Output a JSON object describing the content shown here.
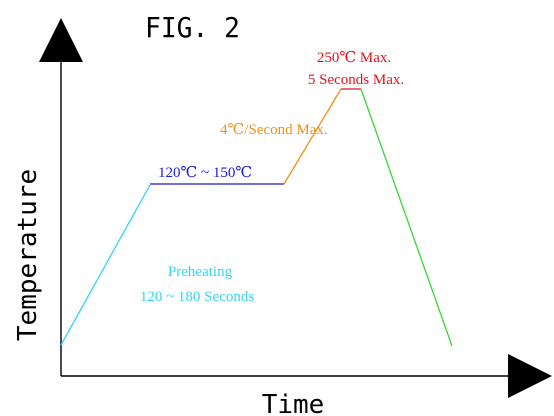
{
  "figure": {
    "title": "FIG. 2",
    "x_axis_label": "Time",
    "y_axis_label": "Temperature"
  },
  "stages": {
    "preheat_temperature": "120℃ ~ 150℃",
    "preheat_line1": "Preheating",
    "preheat_line2": "120 ~ 180 Seconds",
    "ramp_rate": "4℃/Second Max.",
    "peak_line1": "250℃ Max.",
    "peak_line2": "5 Seconds Max."
  },
  "colors": {
    "preheat_ramp": "#33d6f0",
    "soak": "#1a1ad0",
    "ramp_up": "#f0901a",
    "peak": "#e0141e",
    "cool_down": "#36d836",
    "axes": "#000000"
  }
}
